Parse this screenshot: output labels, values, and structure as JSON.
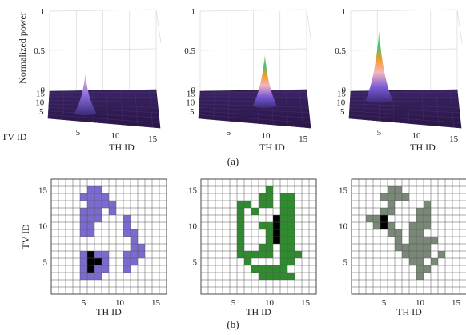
{
  "figure": {
    "caption_a": "(a)",
    "caption_b": "(b)"
  },
  "chart_data": [
    {
      "type": "surface",
      "title": "",
      "zlabel": "Normalized power",
      "xlabel": "TH ID",
      "ylabel": "TV ID",
      "zlim": [
        0,
        1
      ],
      "z_ticks": [
        "0",
        "0.5",
        "1"
      ],
      "x_ticks": [
        "5",
        "10",
        "15"
      ],
      "y_ticks": [
        "5",
        "10",
        "15"
      ],
      "peak": {
        "th": 6,
        "tv": 5,
        "value": 0.2
      },
      "colormap": [
        "#2d1b4e",
        "#7b5cd6",
        "#f4b4c0",
        "#f39c2a",
        "#35c47c"
      ]
    },
    {
      "type": "surface",
      "title": "",
      "zlabel": "",
      "xlabel": "TH ID",
      "ylabel": "",
      "zlim": [
        0,
        1
      ],
      "z_ticks": [
        "0",
        "0.5",
        "1"
      ],
      "x_ticks": [
        "5",
        "10",
        "15"
      ],
      "y_ticks": [
        "5",
        "10",
        "15"
      ],
      "peak": {
        "th": 10,
        "tv": 9,
        "value": 0.45
      },
      "colormap": [
        "#2d1b4e",
        "#7b5cd6",
        "#f4b4c0",
        "#f39c2a",
        "#35c47c"
      ]
    },
    {
      "type": "surface",
      "title": "",
      "zlabel": "",
      "xlabel": "TH ID",
      "ylabel": "",
      "zlim": [
        0,
        1
      ],
      "z_ticks": [
        "0",
        "0.5",
        "1"
      ],
      "x_ticks": [
        "5",
        "10",
        "15"
      ],
      "y_ticks": [
        "5",
        "10",
        "15"
      ],
      "peak": {
        "th": 5,
        "tv": 11,
        "value": 0.75
      },
      "colormap": [
        "#2d1b4e",
        "#7b5cd6",
        "#f4b4c0",
        "#f39c2a",
        "#35c47c"
      ]
    },
    {
      "type": "heatmap",
      "title": "",
      "xlabel": "TH ID",
      "ylabel": "TV ID",
      "xlim": [
        0.5,
        16.5
      ],
      "ylim": [
        0.5,
        16.5
      ],
      "x_ticks": [
        "5",
        "10",
        "15"
      ],
      "y_ticks": [
        "5",
        "10",
        "15"
      ],
      "fill_color": "#7b6bd0",
      "peak_color": "#000000",
      "cells": [
        [
          6,
          15
        ],
        [
          7,
          15
        ],
        [
          5,
          14
        ],
        [
          6,
          14
        ],
        [
          7,
          14
        ],
        [
          8,
          14
        ],
        [
          6,
          13
        ],
        [
          7,
          13
        ],
        [
          8,
          13
        ],
        [
          9,
          13
        ],
        [
          5,
          12
        ],
        [
          6,
          12
        ],
        [
          7,
          12
        ],
        [
          9,
          12
        ],
        [
          5,
          11
        ],
        [
          6,
          11
        ],
        [
          7,
          11
        ],
        [
          11,
          11
        ],
        [
          5,
          10
        ],
        [
          6,
          10
        ],
        [
          11,
          10
        ],
        [
          5,
          9
        ],
        [
          6,
          9
        ],
        [
          11,
          9
        ],
        [
          12,
          9
        ],
        [
          12,
          8
        ],
        [
          12,
          7
        ],
        [
          13,
          7
        ],
        [
          5,
          6
        ],
        [
          7,
          6
        ],
        [
          8,
          6
        ],
        [
          11,
          6
        ],
        [
          12,
          6
        ],
        [
          13,
          6
        ],
        [
          5,
          5
        ],
        [
          8,
          5
        ],
        [
          11,
          5
        ],
        [
          12,
          5
        ],
        [
          5,
          4
        ],
        [
          7,
          4
        ],
        [
          8,
          4
        ],
        [
          11,
          4
        ],
        [
          5,
          3
        ],
        [
          6,
          3
        ],
        [
          7,
          3
        ]
      ],
      "peak_cells": [
        [
          6,
          6
        ],
        [
          6,
          5
        ],
        [
          7,
          5
        ],
        [
          6,
          4
        ]
      ]
    },
    {
      "type": "heatmap",
      "title": "",
      "xlabel": "TH ID",
      "ylabel": "",
      "xlim": [
        0.5,
        16.5
      ],
      "ylim": [
        0.5,
        16.5
      ],
      "x_ticks": [
        "5",
        "10",
        "15"
      ],
      "y_ticks": [
        "5",
        "10",
        "15"
      ],
      "fill_color": "#2e8b2e",
      "peak_color": "#000000",
      "cells": [
        [
          10,
          15
        ],
        [
          9,
          14
        ],
        [
          10,
          14
        ],
        [
          12,
          14
        ],
        [
          13,
          14
        ],
        [
          6,
          13
        ],
        [
          7,
          13
        ],
        [
          9,
          13
        ],
        [
          10,
          13
        ],
        [
          12,
          13
        ],
        [
          13,
          13
        ],
        [
          6,
          12
        ],
        [
          8,
          12
        ],
        [
          12,
          12
        ],
        [
          13,
          12
        ],
        [
          6,
          11
        ],
        [
          12,
          11
        ],
        [
          13,
          11
        ],
        [
          6,
          10
        ],
        [
          9,
          10
        ],
        [
          10,
          10
        ],
        [
          12,
          10
        ],
        [
          13,
          10
        ],
        [
          6,
          9
        ],
        [
          10,
          9
        ],
        [
          12,
          9
        ],
        [
          13,
          9
        ],
        [
          6,
          8
        ],
        [
          10,
          8
        ],
        [
          12,
          8
        ],
        [
          13,
          8
        ],
        [
          6,
          7
        ],
        [
          9,
          7
        ],
        [
          10,
          7
        ],
        [
          12,
          7
        ],
        [
          13,
          7
        ],
        [
          6,
          6
        ],
        [
          7,
          6
        ],
        [
          8,
          6
        ],
        [
          9,
          6
        ],
        [
          10,
          6
        ],
        [
          12,
          6
        ],
        [
          13,
          6
        ],
        [
          14,
          6
        ],
        [
          7,
          5
        ],
        [
          12,
          5
        ],
        [
          13,
          5
        ],
        [
          8,
          4
        ],
        [
          9,
          4
        ],
        [
          10,
          4
        ],
        [
          11,
          4
        ],
        [
          12,
          4
        ],
        [
          9,
          3
        ],
        [
          10,
          3
        ],
        [
          11,
          3
        ],
        [
          12,
          3
        ],
        [
          13,
          3
        ]
      ],
      "peak_cells": [
        [
          11,
          11
        ],
        [
          11,
          10
        ],
        [
          11,
          9
        ],
        [
          11,
          8
        ]
      ]
    },
    {
      "type": "heatmap",
      "title": "",
      "xlabel": "TH ID",
      "ylabel": "",
      "xlim": [
        0.5,
        16.5
      ],
      "ylim": [
        0.5,
        16.5
      ],
      "x_ticks": [
        "5",
        "10",
        "15"
      ],
      "y_ticks": [
        "5",
        "10",
        "15"
      ],
      "fill_color": "#7a8878",
      "peak_color": "#000000",
      "cells": [
        [
          6,
          15
        ],
        [
          7,
          15
        ],
        [
          5,
          14
        ],
        [
          6,
          14
        ],
        [
          7,
          14
        ],
        [
          8,
          14
        ],
        [
          6,
          13
        ],
        [
          11,
          13
        ],
        [
          5,
          12
        ],
        [
          6,
          12
        ],
        [
          10,
          12
        ],
        [
          11,
          12
        ],
        [
          3,
          11
        ],
        [
          4,
          11
        ],
        [
          10,
          11
        ],
        [
          11,
          11
        ],
        [
          4,
          10
        ],
        [
          5,
          10
        ],
        [
          6,
          10
        ],
        [
          9,
          10
        ],
        [
          10,
          10
        ],
        [
          11,
          10
        ],
        [
          6,
          9
        ],
        [
          7,
          9
        ],
        [
          9,
          9
        ],
        [
          10,
          9
        ],
        [
          7,
          8
        ],
        [
          9,
          8
        ],
        [
          10,
          8
        ],
        [
          11,
          8
        ],
        [
          12,
          8
        ],
        [
          7,
          7
        ],
        [
          8,
          7
        ],
        [
          9,
          7
        ],
        [
          10,
          7
        ],
        [
          11,
          7
        ],
        [
          8,
          6
        ],
        [
          9,
          6
        ],
        [
          10,
          6
        ],
        [
          11,
          6
        ],
        [
          13,
          6
        ],
        [
          9,
          5
        ],
        [
          10,
          5
        ],
        [
          12,
          5
        ],
        [
          10,
          4
        ],
        [
          11,
          4
        ],
        [
          10,
          3
        ]
      ],
      "peak_cells": [
        [
          5,
          11
        ],
        [
          5,
          10
        ]
      ]
    }
  ]
}
